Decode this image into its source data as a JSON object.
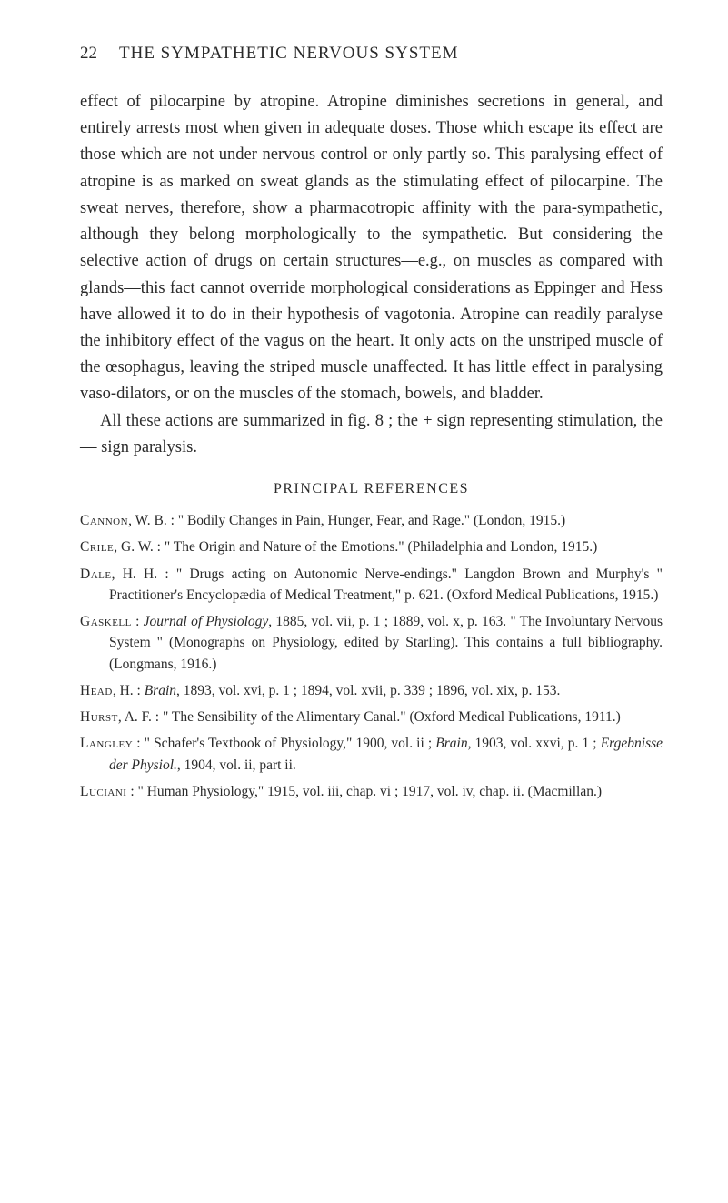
{
  "header": {
    "page_number": "22",
    "title": "THE SYMPATHETIC NERVOUS SYSTEM"
  },
  "paragraphs": {
    "p1": "effect of pilocarpine by atropine. Atropine diminishes secretions in general, and entirely arrests most when given in adequate doses. Those which escape its effect are those which are not under nervous control or only partly so. This paralysing effect of atropine is as marked on sweat glands as the stimulating effect of pilocarpine. The sweat nerves, therefore, show a pharmacotropic affinity with the para-sympathetic, although they belong morphologically to the sympathetic. But considering the selective action of drugs on certain structures—e.g., on muscles as compared with glands—this fact cannot override morphological considerations as Eppinger and Hess have allowed it to do in their hypothesis of vagotonia. Atropine can readily paralyse the inhibitory effect of the vagus on the heart. It only acts on the unstriped muscle of the œsophagus, leaving the striped muscle unaffected. It has little effect in paralysing vaso-dilators, or on the muscles of the stomach, bowels, and bladder.",
    "p2": "All these actions are summarized in fig. 8 ; the + sign representing stimulation, the — sign paralysis."
  },
  "section": {
    "title": "PRINCIPAL REFERENCES"
  },
  "refs": {
    "cannon_author": "Cannon",
    "cannon_rest": ", W. B. : \" Bodily Changes in Pain, Hunger, Fear, and Rage.\" (London, 1915.)",
    "crile_author": "Crile",
    "crile_rest": ", G. W. : \" The Origin and Nature of the Emotions.\" (Philadelphia and London, 1915.)",
    "dale_author": "Dale",
    "dale_rest": ", H. H. : \" Drugs acting on Autonomic Nerve-endings.\" Langdon Brown and Murphy's \" Practitioner's Encyclopædia of Medical Treatment,\" p. 621. (Oxford Medical Publications, 1915.)",
    "gaskell_author": "Gaskell",
    "gaskell_rest_a": " : ",
    "gaskell_journal": "Journal of Physiology",
    "gaskell_rest_b": ", 1885, vol. vii, p. 1 ; 1889, vol. x, p. 163. \" The Involuntary Nervous System \" (Monographs on Physiology, edited by Starling). This contains a full bibliography. (Longmans, 1916.)",
    "head_author": "Head",
    "head_rest_a": ", H. : ",
    "head_journal": "Brain",
    "head_rest_b": ", 1893, vol. xvi, p. 1 ; 1894, vol. xvii, p. 339 ; 1896, vol. xix, p. 153.",
    "hurst_author": "Hurst",
    "hurst_rest": ", A. F. : \" The Sensibility of the Alimentary Canal.\" (Oxford Medical Publications, 1911.)",
    "langley_author": "Langley",
    "langley_rest_a": " : \" Schafer's Textbook of Physiology,\" 1900, vol. ii ; ",
    "langley_journal": "Brain",
    "langley_rest_b": ", 1903, vol. xxvi, p. 1 ; ",
    "langley_journal2": "Ergebnisse der Physiol.",
    "langley_rest_c": ", 1904, vol. ii, part ii.",
    "luciani_author": "Luciani",
    "luciani_rest": " : \" Human Physiology,\" 1915, vol. iii, chap. vi ; 1917, vol. iv, chap. ii. (Macmillan.)"
  }
}
